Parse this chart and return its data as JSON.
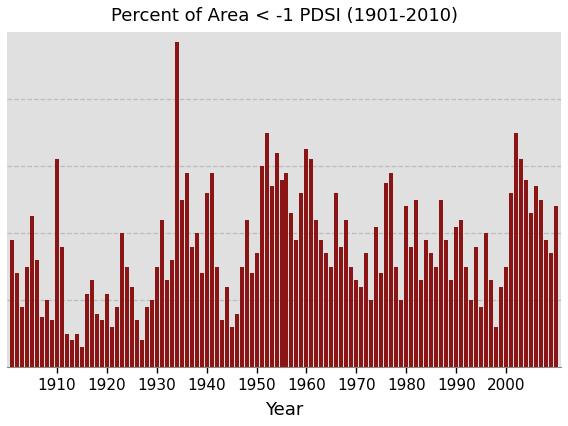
{
  "title": "Percent of Area < -1 PDSI (1901-2010)",
  "xlabel": "Year",
  "bar_color": "#8B1515",
  "plot_bg_color": "#E0E0E0",
  "figure_bg_color": "#FFFFFF",
  "grid_color": "#BBBBBB",
  "years": [
    1901,
    1902,
    1903,
    1904,
    1905,
    1906,
    1907,
    1908,
    1909,
    1910,
    1911,
    1912,
    1913,
    1914,
    1915,
    1916,
    1917,
    1918,
    1919,
    1920,
    1921,
    1922,
    1923,
    1924,
    1925,
    1926,
    1927,
    1928,
    1929,
    1930,
    1931,
    1932,
    1933,
    1934,
    1935,
    1936,
    1937,
    1938,
    1939,
    1940,
    1941,
    1942,
    1943,
    1944,
    1945,
    1946,
    1947,
    1948,
    1949,
    1950,
    1951,
    1952,
    1953,
    1954,
    1955,
    1956,
    1957,
    1958,
    1959,
    1960,
    1961,
    1962,
    1963,
    1964,
    1965,
    1966,
    1967,
    1968,
    1969,
    1970,
    1971,
    1972,
    1973,
    1974,
    1975,
    1976,
    1977,
    1978,
    1979,
    1980,
    1981,
    1982,
    1983,
    1984,
    1985,
    1986,
    1987,
    1988,
    1989,
    1990,
    1991,
    1992,
    1993,
    1994,
    1995,
    1996,
    1997,
    1998,
    1999,
    2000,
    2001,
    2002,
    2003,
    2004,
    2005,
    2006,
    2007,
    2008,
    2009,
    2010
  ],
  "values": [
    38,
    28,
    18,
    30,
    45,
    32,
    15,
    20,
    14,
    62,
    36,
    10,
    8,
    10,
    6,
    22,
    26,
    16,
    14,
    22,
    12,
    18,
    40,
    30,
    24,
    14,
    8,
    18,
    20,
    30,
    44,
    26,
    32,
    97,
    50,
    58,
    36,
    40,
    28,
    52,
    58,
    30,
    14,
    24,
    12,
    16,
    30,
    44,
    28,
    34,
    60,
    70,
    54,
    64,
    56,
    58,
    46,
    38,
    52,
    65,
    62,
    44,
    38,
    34,
    30,
    52,
    36,
    44,
    30,
    26,
    24,
    34,
    20,
    42,
    28,
    55,
    58,
    30,
    20,
    48,
    36,
    50,
    26,
    38,
    34,
    30,
    50,
    38,
    26,
    42,
    44,
    30,
    20,
    36,
    18,
    40,
    26,
    12,
    24,
    30,
    52,
    70,
    62,
    56,
    46,
    54,
    50,
    38,
    34,
    48
  ],
  "ylim": [
    0,
    100
  ],
  "yticks": [
    20,
    40,
    60,
    80
  ],
  "xticks": [
    1910,
    1920,
    1930,
    1940,
    1950,
    1960,
    1970,
    1980,
    1990,
    2000
  ],
  "xlim": [
    1900,
    2011
  ],
  "title_fontsize": 13,
  "xlabel_fontsize": 13,
  "tick_fontsize": 11
}
